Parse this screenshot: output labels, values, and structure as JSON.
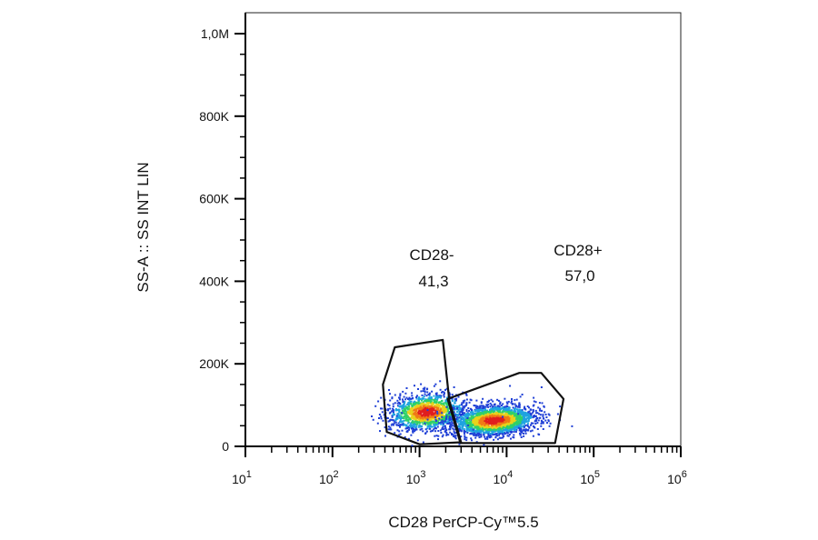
{
  "chart_data": {
    "type": "scatter",
    "subtype": "flow-cytometry-density-dot-plot",
    "xlabel": "CD28 PerCP-Cy™5.5",
    "ylabel": "SS-A :: SS INT LIN",
    "x_scale": "log",
    "y_scale": "linear",
    "xlim": [
      10,
      1000000
    ],
    "ylim": [
      0,
      1000000
    ],
    "x_ticks": [
      {
        "base": "10",
        "exp": "1"
      },
      {
        "base": "10",
        "exp": "2"
      },
      {
        "base": "10",
        "exp": "3"
      },
      {
        "base": "10",
        "exp": "4"
      },
      {
        "base": "10",
        "exp": "5"
      },
      {
        "base": "10",
        "exp": "6"
      }
    ],
    "y_ticks": [
      {
        "value": 0,
        "label": "0"
      },
      {
        "value": 200000,
        "label": "200K"
      },
      {
        "value": 400000,
        "label": "400K"
      },
      {
        "value": 600000,
        "label": "600K"
      },
      {
        "value": 800000,
        "label": "800K"
      },
      {
        "value": 1000000,
        "label": "1,0M"
      }
    ],
    "grid": false,
    "color_scale": [
      "#1f3fd6",
      "#1fa3e0",
      "#2fd06a",
      "#e8d21c",
      "#f07a15",
      "#e01e1e"
    ],
    "populations": [
      {
        "center_x": 1200,
        "center_y": 85000,
        "count": 1400,
        "spread_log_x": 0.22,
        "spread_y": 22000
      },
      {
        "center_x": 7000,
        "center_y": 65000,
        "count": 2200,
        "spread_log_x": 0.24,
        "spread_y": 18000
      }
    ],
    "gates": [
      {
        "name": "CD28-",
        "value": "41,3",
        "polygon": [
          [
            520,
            240000
          ],
          [
            380,
            150000
          ],
          [
            420,
            35000
          ],
          [
            1000,
            5000
          ],
          [
            3000,
            10000
          ],
          [
            2200,
            110000
          ],
          [
            1850,
            258000
          ]
        ]
      },
      {
        "name": "CD28+",
        "value": "57,0",
        "polygon": [
          [
            2100,
            115000
          ],
          [
            2950,
            8000
          ],
          [
            36000,
            8000
          ],
          [
            45000,
            115000
          ],
          [
            25000,
            178000
          ],
          [
            14000,
            178000
          ]
        ]
      }
    ]
  }
}
